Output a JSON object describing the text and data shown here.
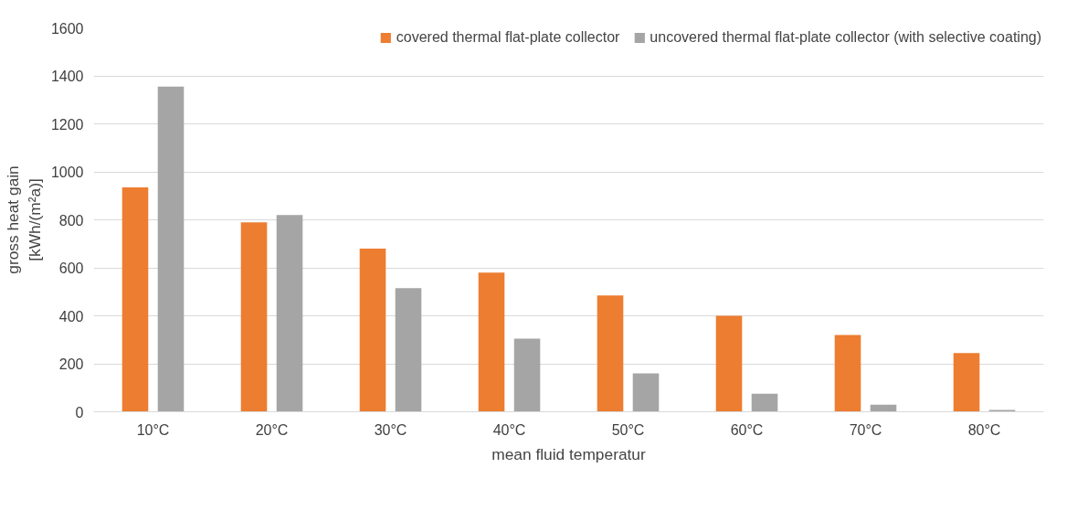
{
  "chart_data": {
    "type": "bar",
    "xlabel": "mean fluid temperatur",
    "ylabel": "gross heat gain\n[kWh/(m²a)]",
    "categories": [
      "10°C",
      "20°C",
      "30°C",
      "40°C",
      "50°C",
      "60°C",
      "70°C",
      "80°C"
    ],
    "series": [
      {
        "name": "covered thermal flat-plate collector",
        "color": "#ed7d31",
        "values": [
          935,
          790,
          680,
          580,
          485,
          400,
          320,
          245
        ]
      },
      {
        "name": "uncovered thermal flat-plate collector (with selective coating)",
        "color": "#a5a5a5",
        "values": [
          1355,
          820,
          515,
          305,
          160,
          75,
          30,
          8
        ]
      }
    ],
    "ylim": [
      0,
      1600
    ],
    "yticks": [
      0,
      200,
      400,
      600,
      800,
      1000,
      1200,
      1400,
      1600
    ],
    "grid": "y",
    "legend": "top right"
  }
}
